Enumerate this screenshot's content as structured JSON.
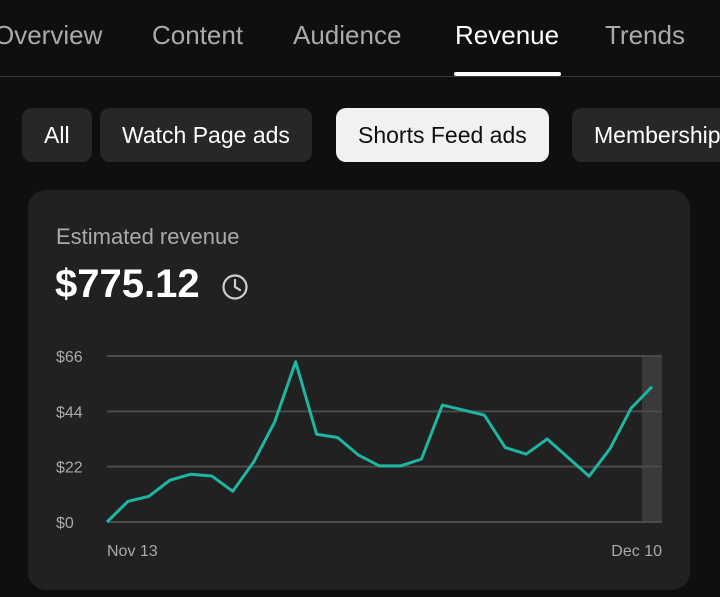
{
  "tabs": [
    {
      "label": "Overview",
      "active": false
    },
    {
      "label": "Content",
      "active": false
    },
    {
      "label": "Audience",
      "active": false
    },
    {
      "label": "Revenue",
      "active": true
    },
    {
      "label": "Trends",
      "active": false
    }
  ],
  "chips": [
    {
      "label": "All",
      "active": false
    },
    {
      "label": "Watch Page ads",
      "active": false
    },
    {
      "label": "Shorts Feed ads",
      "active": true
    },
    {
      "label": "Memberships",
      "active": false
    }
  ],
  "card": {
    "metric_label": "Estimated revenue",
    "metric_value": "$775.12",
    "info_icon": "clock-icon"
  },
  "chart_data": {
    "type": "line",
    "title": "",
    "xlabel": "",
    "ylabel": "",
    "x_tick_labels": [
      "Nov 13",
      "Dec 10"
    ],
    "y_ticks": [
      0,
      22,
      44,
      66
    ],
    "y_tick_labels": [
      "$0",
      "$22",
      "$44",
      "$66"
    ],
    "ylim": [
      0,
      66
    ],
    "grid": true,
    "line_color": "#1fb5a0",
    "series": [
      {
        "values": [
          0,
          8.2,
          10.2,
          16.6,
          19,
          18.3,
          12.2,
          23.9,
          39.8,
          63.7,
          34.9,
          33.6,
          26.6,
          22.3,
          22.3,
          25,
          46.5,
          44.5,
          42.5,
          29.6,
          27,
          33,
          25.6,
          18.2,
          29.2,
          45.2,
          53.8
        ]
      }
    ]
  }
}
